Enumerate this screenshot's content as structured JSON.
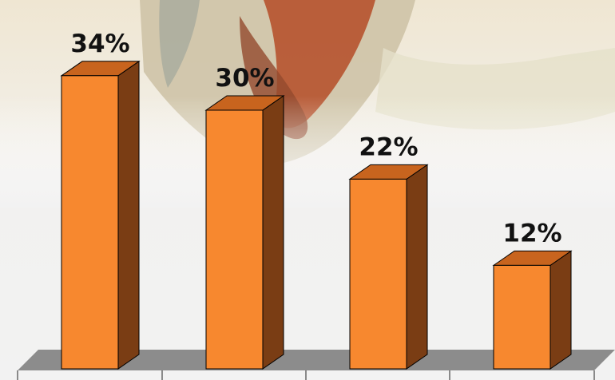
{
  "chart_data": {
    "type": "bar",
    "style": "3d-column",
    "categories": [
      "",
      "",
      "",
      ""
    ],
    "values": [
      34,
      30,
      22,
      12
    ],
    "value_labels": [
      "34%",
      "30%",
      "22%",
      "12%"
    ],
    "value_unit": "%",
    "title": "",
    "xlabel": "",
    "ylabel": "",
    "ylim": [
      0,
      40
    ],
    "grid": false,
    "legend": "none"
  },
  "colors": {
    "bar_front": "#f7882f",
    "bar_side": "#7a3d14",
    "bar_top": "#c8641e",
    "bar_outline": "#000000",
    "floor": "#8c8c8c",
    "background_top": "#efe6d2",
    "background_bottom": "#f2f2f2",
    "illustration_accent": "#b4502a"
  },
  "background": {
    "image": "painting-fragment"
  }
}
